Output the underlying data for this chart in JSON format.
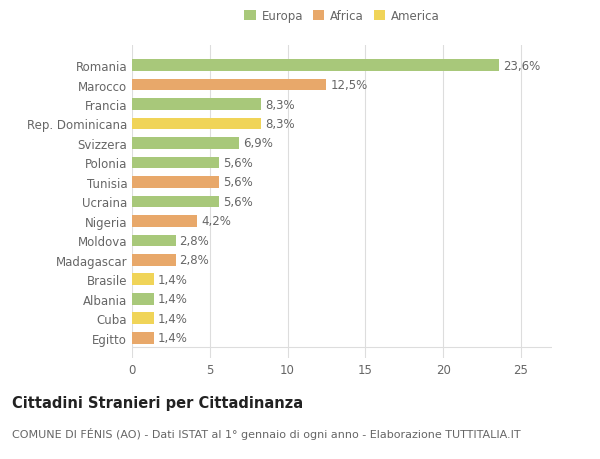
{
  "categories": [
    "Romania",
    "Marocco",
    "Francia",
    "Rep. Dominicana",
    "Svizzera",
    "Polonia",
    "Tunisia",
    "Ucraina",
    "Nigeria",
    "Moldova",
    "Madagascar",
    "Brasile",
    "Albania",
    "Cuba",
    "Egitto"
  ],
  "values": [
    23.6,
    12.5,
    8.3,
    8.3,
    6.9,
    5.6,
    5.6,
    5.6,
    4.2,
    2.8,
    2.8,
    1.4,
    1.4,
    1.4,
    1.4
  ],
  "labels": [
    "23,6%",
    "12,5%",
    "8,3%",
    "8,3%",
    "6,9%",
    "5,6%",
    "5,6%",
    "5,6%",
    "4,2%",
    "2,8%",
    "2,8%",
    "1,4%",
    "1,4%",
    "1,4%",
    "1,4%"
  ],
  "colors": [
    "#a8c87a",
    "#e8a86a",
    "#a8c87a",
    "#f0d458",
    "#a8c87a",
    "#a8c87a",
    "#e8a86a",
    "#a8c87a",
    "#e8a86a",
    "#a8c87a",
    "#e8a86a",
    "#f0d458",
    "#a8c87a",
    "#f0d458",
    "#e8a86a"
  ],
  "legend_labels": [
    "Europa",
    "Africa",
    "America"
  ],
  "legend_colors": [
    "#a8c87a",
    "#e8a86a",
    "#f0d458"
  ],
  "xlim": [
    0,
    27
  ],
  "xticks": [
    0,
    5,
    10,
    15,
    20,
    25
  ],
  "title": "Cittadini Stranieri per Cittadinanza",
  "subtitle": "COMUNE DI FÉNIS (AO) - Dati ISTAT al 1° gennaio di ogni anno - Elaborazione TUTTITALIA.IT",
  "bg_color": "#ffffff",
  "grid_color": "#dddddd",
  "bar_height": 0.6,
  "label_fontsize": 8.5,
  "tick_fontsize": 8.5,
  "title_fontsize": 10.5,
  "subtitle_fontsize": 8.0,
  "text_color": "#666666",
  "title_color": "#222222"
}
